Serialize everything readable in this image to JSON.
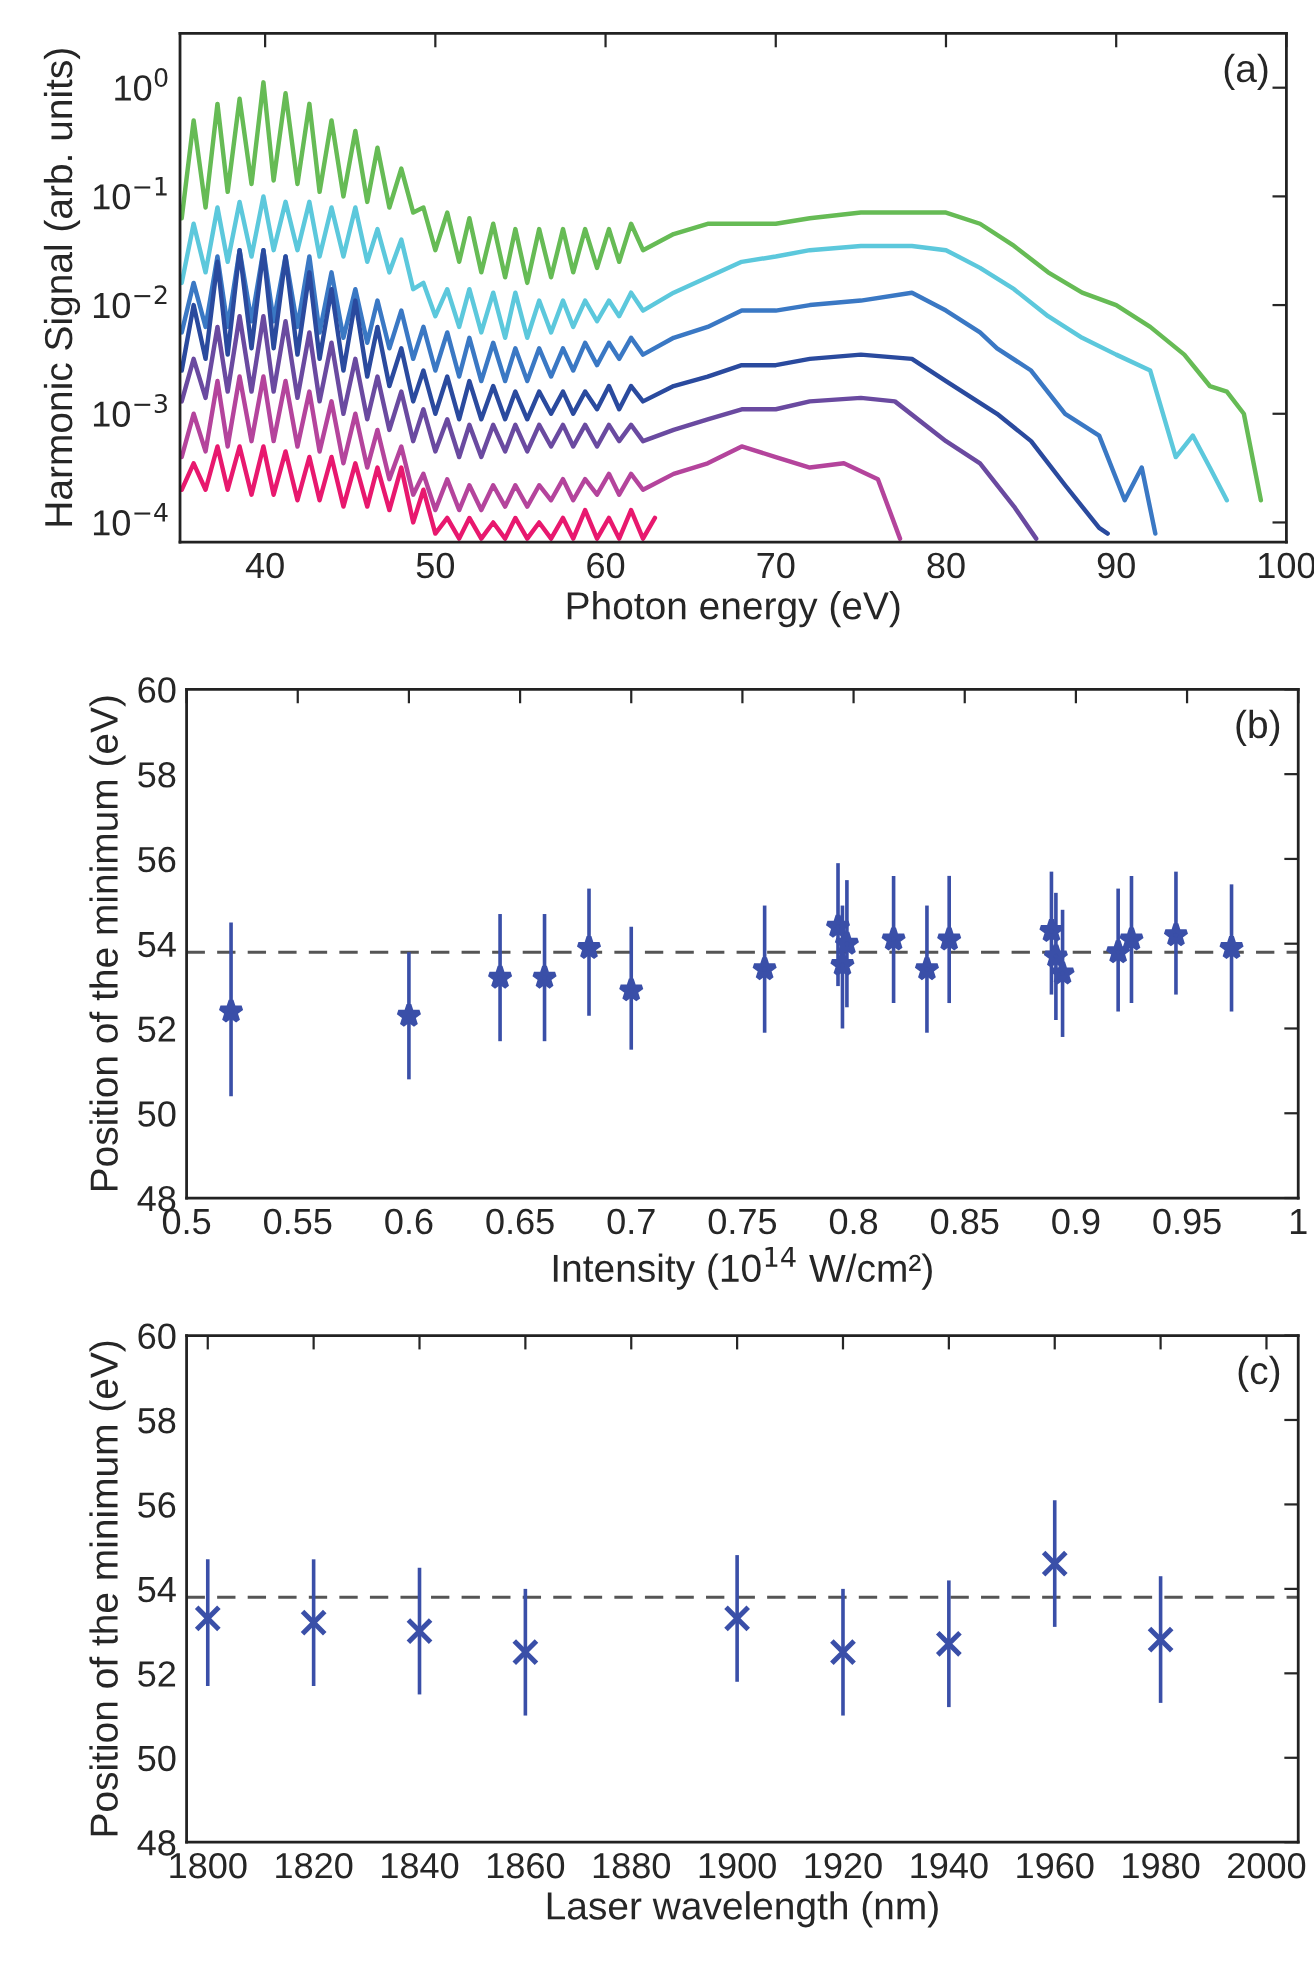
{
  "chart_data": [
    {
      "type": "line",
      "xlabel": "Photon energy (eV)",
      "ylabel": "Harmonic Signal (arb. units)",
      "annotations": [
        "(a)"
      ],
      "log": "y",
      "xlim": [
        35,
        100
      ],
      "xticks": [
        40,
        50,
        60,
        70,
        80,
        90,
        100
      ],
      "ylim": [
        6.6e-05,
        3.16
      ],
      "yticks": [
        {
          "value": 0.0001,
          "label": "10$^{−4}$"
        },
        {
          "value": 0.001,
          "label": "10$^{−3}$"
        },
        {
          "value": 0.01,
          "label": "10$^{−2}$"
        },
        {
          "value": 0.1,
          "label": "10$^{−1}$"
        },
        {
          "value": 1,
          "label": "10$^{0}$"
        }
      ],
      "series": [
        {
          "color": "#66bb55",
          "x": [
            35.1,
            35.8,
            36.5,
            37.2,
            37.8,
            38.5,
            39.2,
            39.9,
            40.5,
            41.2,
            41.9,
            42.6,
            43.2,
            43.9,
            44.6,
            45.3,
            46.0,
            46.6,
            47.3,
            48.0,
            48.7,
            49.3,
            50.0,
            50.7,
            51.4,
            52.0,
            52.7,
            53.4,
            54.1,
            54.7,
            55.4,
            56.1,
            56.8,
            57.5,
            58.1,
            58.8,
            59.5,
            60.2,
            60.8,
            61.5,
            62.2,
            64,
            66,
            68,
            70,
            72,
            75,
            78,
            80,
            82,
            84,
            86,
            88,
            90,
            92,
            94,
            95.5,
            96.5,
            97.5,
            98.5
          ],
          "values": [
            0.063,
            0.5,
            0.079,
            0.71,
            0.11,
            0.79,
            0.13,
            1.12,
            0.14,
            0.89,
            0.13,
            0.71,
            0.11,
            0.5,
            0.1,
            0.4,
            0.089,
            0.28,
            0.079,
            0.18,
            0.071,
            0.079,
            0.032,
            0.071,
            0.025,
            0.063,
            0.02,
            0.056,
            0.018,
            0.05,
            0.016,
            0.05,
            0.018,
            0.05,
            0.02,
            0.05,
            0.022,
            0.05,
            0.025,
            0.056,
            0.032,
            0.045,
            0.056,
            0.056,
            0.056,
            0.063,
            0.071,
            0.071,
            0.071,
            0.056,
            0.035,
            0.02,
            0.013,
            0.01,
            0.0063,
            0.0035,
            0.0018,
            0.0016,
            0.001,
            0.00016
          ]
        },
        {
          "color": "#5cc8dc",
          "x": [
            35.1,
            35.8,
            36.5,
            37.2,
            37.8,
            38.5,
            39.2,
            39.9,
            40.5,
            41.2,
            41.9,
            42.6,
            43.2,
            43.9,
            44.6,
            45.3,
            46.0,
            46.6,
            47.3,
            48.0,
            48.7,
            49.3,
            50.0,
            50.7,
            51.4,
            52.0,
            52.7,
            53.4,
            54.1,
            54.7,
            55.4,
            56.1,
            56.8,
            57.5,
            58.1,
            58.8,
            59.5,
            60.2,
            60.8,
            61.5,
            62.2,
            64,
            66,
            68,
            70,
            72,
            75,
            78,
            80,
            82,
            84,
            86,
            88,
            90,
            92,
            93.5,
            94.5,
            95.5,
            96.5
          ],
          "values": [
            0.016,
            0.056,
            0.02,
            0.079,
            0.025,
            0.089,
            0.028,
            0.1,
            0.032,
            0.089,
            0.032,
            0.089,
            0.028,
            0.079,
            0.028,
            0.079,
            0.025,
            0.05,
            0.02,
            0.04,
            0.014,
            0.016,
            0.0079,
            0.014,
            0.0063,
            0.014,
            0.0056,
            0.013,
            0.005,
            0.013,
            0.005,
            0.011,
            0.0056,
            0.011,
            0.0063,
            0.011,
            0.0071,
            0.011,
            0.0079,
            0.013,
            0.0089,
            0.013,
            0.018,
            0.025,
            0.028,
            0.032,
            0.035,
            0.035,
            0.032,
            0.022,
            0.014,
            0.0079,
            0.005,
            0.0035,
            0.0025,
            0.0004,
            0.00063,
            0.00032,
            0.00016
          ]
        },
        {
          "color": "#3a78c4",
          "x": [
            35.1,
            35.8,
            36.5,
            37.2,
            37.8,
            38.5,
            39.2,
            39.9,
            40.5,
            41.2,
            41.9,
            42.6,
            43.2,
            43.9,
            44.6,
            45.3,
            46.0,
            46.6,
            47.3,
            48.0,
            48.7,
            49.3,
            50.0,
            50.7,
            51.4,
            52.0,
            52.7,
            53.4,
            54.1,
            54.7,
            55.4,
            56.1,
            56.8,
            57.5,
            58.1,
            58.8,
            59.5,
            60.2,
            60.8,
            61.5,
            62.2,
            64,
            66,
            68,
            70,
            72,
            75,
            78,
            80,
            82,
            83,
            85,
            87,
            89,
            90.5,
            91.5,
            92.3
          ],
          "values": [
            0.0056,
            0.016,
            0.0063,
            0.028,
            0.0063,
            0.032,
            0.0071,
            0.032,
            0.0071,
            0.028,
            0.0063,
            0.028,
            0.0056,
            0.02,
            0.005,
            0.014,
            0.0045,
            0.011,
            0.004,
            0.0089,
            0.0032,
            0.0063,
            0.0025,
            0.0056,
            0.0022,
            0.005,
            0.002,
            0.0045,
            0.002,
            0.004,
            0.002,
            0.004,
            0.0022,
            0.004,
            0.0025,
            0.0045,
            0.0028,
            0.0045,
            0.0032,
            0.005,
            0.0035,
            0.005,
            0.0063,
            0.0089,
            0.0089,
            0.01,
            0.011,
            0.013,
            0.0089,
            0.0056,
            0.004,
            0.0025,
            0.001,
            0.00063,
            0.00016,
            0.00032,
            7.9e-05
          ]
        },
        {
          "color": "#2a4a9e",
          "x": [
            35.1,
            35.8,
            36.5,
            37.2,
            37.8,
            38.5,
            39.2,
            39.9,
            40.5,
            41.2,
            41.9,
            42.6,
            43.2,
            43.9,
            44.6,
            45.3,
            46.0,
            46.6,
            47.3,
            48.0,
            48.7,
            49.3,
            50.0,
            50.7,
            51.4,
            52.0,
            52.7,
            53.4,
            54.1,
            54.7,
            55.4,
            56.1,
            56.8,
            57.5,
            58.1,
            58.8,
            59.5,
            60.2,
            60.8,
            61.5,
            62.2,
            64,
            66,
            68,
            70,
            72,
            75,
            78,
            80,
            83,
            85,
            87,
            89,
            89.5
          ],
          "values": [
            0.0025,
            0.01,
            0.0032,
            0.025,
            0.0035,
            0.032,
            0.004,
            0.032,
            0.004,
            0.028,
            0.0035,
            0.02,
            0.0032,
            0.014,
            0.0025,
            0.011,
            0.0022,
            0.0063,
            0.0018,
            0.004,
            0.0013,
            0.0025,
            0.001,
            0.0022,
            0.00089,
            0.002,
            0.00089,
            0.0018,
            0.00089,
            0.0016,
            0.00089,
            0.0016,
            0.001,
            0.0016,
            0.001,
            0.0016,
            0.0011,
            0.0018,
            0.0011,
            0.0018,
            0.0013,
            0.0018,
            0.0022,
            0.0028,
            0.0028,
            0.0032,
            0.0035,
            0.0032,
            0.002,
            0.001,
            0.00056,
            0.00022,
            8.9e-05,
            7.9e-05
          ]
        },
        {
          "color": "#6a4aa0",
          "x": [
            35.1,
            35.8,
            36.5,
            37.2,
            37.8,
            38.5,
            39.2,
            39.9,
            40.5,
            41.2,
            41.9,
            42.6,
            43.2,
            43.9,
            44.6,
            45.3,
            46.0,
            46.6,
            47.3,
            48.0,
            48.7,
            49.3,
            50.0,
            50.7,
            51.4,
            52.0,
            52.7,
            53.4,
            54.1,
            54.7,
            55.4,
            56.1,
            56.8,
            57.5,
            58.1,
            58.8,
            59.5,
            60.2,
            60.8,
            61.5,
            62.2,
            64,
            66,
            68,
            70,
            72,
            75,
            77,
            80,
            82,
            84,
            85.3
          ],
          "values": [
            0.0013,
            0.0032,
            0.0014,
            0.0063,
            0.0016,
            0.0079,
            0.0016,
            0.0079,
            0.0016,
            0.0071,
            0.0014,
            0.0056,
            0.0013,
            0.0045,
            0.001,
            0.0032,
            0.00089,
            0.0022,
            0.00071,
            0.0016,
            0.00056,
            0.0011,
            0.00045,
            0.00089,
            0.0004,
            0.00079,
            0.0004,
            0.00079,
            0.00045,
            0.00079,
            0.00045,
            0.00079,
            0.0005,
            0.00079,
            0.0005,
            0.00079,
            0.0005,
            0.00079,
            0.00056,
            0.00079,
            0.00056,
            0.00071,
            0.00089,
            0.0011,
            0.0011,
            0.0013,
            0.0014,
            0.0013,
            0.00056,
            0.00035,
            0.00014,
            7.1e-05
          ]
        },
        {
          "color": "#b4449c",
          "x": [
            35.1,
            35.8,
            36.5,
            37.2,
            37.8,
            38.5,
            39.2,
            39.9,
            40.5,
            41.2,
            41.9,
            42.6,
            43.2,
            43.9,
            44.6,
            45.3,
            46.0,
            46.6,
            47.3,
            48.0,
            48.7,
            49.3,
            50.0,
            50.7,
            51.4,
            52.0,
            52.7,
            53.4,
            54.1,
            54.7,
            55.4,
            56.1,
            56.8,
            57.5,
            58.1,
            58.8,
            59.5,
            60.2,
            60.8,
            61.5,
            62.2,
            64,
            66,
            68,
            70,
            72,
            74,
            76,
            77.3
          ],
          "values": [
            0.0004,
            0.001,
            0.00045,
            0.002,
            0.0005,
            0.0022,
            0.00056,
            0.0022,
            0.00056,
            0.002,
            0.0005,
            0.0016,
            0.00045,
            0.0013,
            0.00035,
            0.001,
            0.00032,
            0.00071,
            0.00025,
            0.0005,
            0.00018,
            0.00028,
            0.00013,
            0.00025,
            0.00013,
            0.00022,
            0.00013,
            0.00022,
            0.00014,
            0.00022,
            0.00014,
            0.00022,
            0.00016,
            0.00025,
            0.00016,
            0.00025,
            0.00018,
            0.00028,
            0.00018,
            0.00028,
            0.0002,
            0.00028,
            0.00035,
            0.0005,
            0.0004,
            0.00032,
            0.00035,
            0.00025,
            7.1e-05
          ]
        },
        {
          "color": "#e8186e",
          "x": [
            35.1,
            35.8,
            36.5,
            37.2,
            37.8,
            38.5,
            39.2,
            39.9,
            40.5,
            41.2,
            41.9,
            42.6,
            43.2,
            43.9,
            44.6,
            45.3,
            46.0,
            46.6,
            47.3,
            48.0,
            48.7,
            49.3,
            50.0,
            50.7,
            51.4,
            52.0,
            52.7,
            53.4,
            54.1,
            54.7,
            55.4,
            56.1,
            56.8,
            57.5,
            58.1,
            58.8,
            59.5,
            60.2,
            60.8,
            61.5,
            62.2,
            62.9
          ],
          "values": [
            0.0002,
            0.00035,
            0.0002,
            0.0005,
            0.0002,
            0.0005,
            0.00018,
            0.0005,
            0.00018,
            0.00045,
            0.00016,
            0.0004,
            0.00016,
            0.0004,
            0.00014,
            0.00035,
            0.00014,
            0.00032,
            0.00013,
            0.00032,
            0.0001,
            0.0002,
            7.9e-05,
            0.00011,
            7.1e-05,
            0.00011,
            7.1e-05,
            0.0001,
            7.1e-05,
            0.00011,
            7.1e-05,
            0.0001,
            7.1e-05,
            0.00011,
            7.1e-05,
            0.00013,
            7.1e-05,
            0.00011,
            7.1e-05,
            0.00013,
            7.1e-05,
            0.00011
          ]
        }
      ]
    },
    {
      "type": "scatter",
      "xlabel": "Intensity (10$^{14}$ W/cm²)",
      "ylabel": "Position of the minimum (eV)",
      "annotations": [
        "(b)"
      ],
      "marker": "star",
      "xlim": [
        0.5,
        1
      ],
      "xticks": [
        0.5,
        0.55,
        0.6,
        0.65,
        0.7,
        0.75,
        0.8,
        0.85,
        0.9,
        0.95,
        1
      ],
      "ylim": [
        48,
        60
      ],
      "yticks": [
        48,
        50,
        52,
        54,
        56,
        58,
        60
      ],
      "ref_lines": [
        {
          "axis": "y",
          "value": 53.8,
          "color": "#555555",
          "line_style": "dashed"
        }
      ],
      "series": [
        {
          "color": "#3a4fa8",
          "x": [
            0.52,
            0.6,
            0.641,
            0.661,
            0.681,
            0.7,
            0.76,
            0.793,
            0.795,
            0.797,
            0.818,
            0.833,
            0.843,
            0.889,
            0.891,
            0.894,
            0.919,
            0.925,
            0.945,
            0.97
          ],
          "values": [
            52.4,
            52.3,
            53.2,
            53.2,
            53.9,
            52.9,
            53.4,
            54.4,
            53.5,
            54.0,
            54.1,
            53.4,
            54.1,
            54.3,
            53.7,
            53.3,
            53.8,
            54.1,
            54.2,
            53.9
          ],
          "errors": [
            [
              50.4,
              54.5
            ],
            [
              50.8,
              53.8
            ],
            [
              51.7,
              54.7
            ],
            [
              51.7,
              54.7
            ],
            [
              52.3,
              55.3
            ],
            [
              51.5,
              54.4
            ],
            [
              51.9,
              54.9
            ],
            [
              53.0,
              55.9
            ],
            [
              52.0,
              54.9
            ],
            [
              52.5,
              55.5
            ],
            [
              52.6,
              55.6
            ],
            [
              51.9,
              54.9
            ],
            [
              52.6,
              55.6
            ],
            [
              52.8,
              55.7
            ],
            [
              52.2,
              55.2
            ],
            [
              51.8,
              54.8
            ],
            [
              52.4,
              55.3
            ],
            [
              52.6,
              55.6
            ],
            [
              52.8,
              55.7
            ],
            [
              52.4,
              55.4
            ]
          ]
        }
      ]
    },
    {
      "type": "scatter",
      "xlabel": "Laser wavelength (nm)",
      "ylabel": "Position of the minimum (eV)",
      "annotations": [
        "(c)"
      ],
      "marker": "cross",
      "xlim": [
        1796,
        2006
      ],
      "xticks": [
        1800,
        1820,
        1840,
        1860,
        1880,
        1900,
        1920,
        1940,
        1960,
        1980,
        2000
      ],
      "ylim": [
        48,
        60
      ],
      "yticks": [
        48,
        50,
        52,
        54,
        56,
        58,
        60
      ],
      "ref_lines": [
        {
          "axis": "y",
          "value": 53.8,
          "color": "#555555",
          "line_style": "dashed"
        }
      ],
      "series": [
        {
          "color": "#3a4fa8",
          "x": [
            1800,
            1820,
            1840,
            1860,
            1900,
            1920,
            1940,
            1960,
            1980
          ],
          "values": [
            53.3,
            53.2,
            53.0,
            52.5,
            53.3,
            52.5,
            52.7,
            54.6,
            52.8
          ],
          "errors": [
            [
              51.7,
              54.7
            ],
            [
              51.7,
              54.7
            ],
            [
              51.5,
              54.5
            ],
            [
              51.0,
              54.0
            ],
            [
              51.8,
              54.8
            ],
            [
              51.0,
              54.0
            ],
            [
              51.2,
              54.2
            ],
            [
              53.1,
              56.1
            ],
            [
              51.3,
              54.3
            ]
          ]
        }
      ]
    }
  ]
}
